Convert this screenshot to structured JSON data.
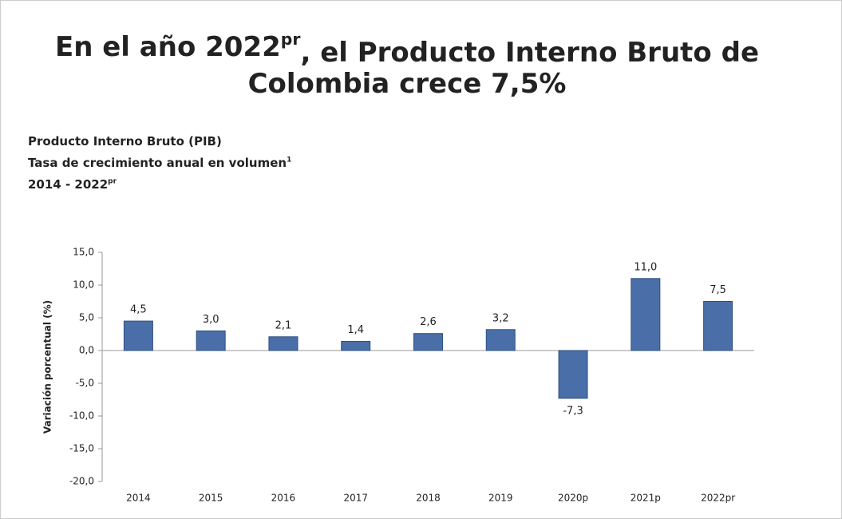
{
  "title_lines": [
    [
      "En el año 2022",
      "pr",
      ", el Producto Interno Bruto de"
    ],
    [
      "Colombia crece 7,5%"
    ]
  ],
  "subtitles": [
    [
      "Producto Interno Bruto (PIB)"
    ],
    [
      "Tasa de crecimiento anual en volumen",
      "1"
    ],
    [
      "2014 - 2022",
      "pr"
    ]
  ],
  "chart_data": {
    "type": "bar",
    "y_label": "Variación porcentual (%)",
    "categories": [
      "2014",
      "2015",
      "2016",
      "2017",
      "2018",
      "2019",
      "2020p",
      "2021p",
      "2022pr"
    ],
    "values": [
      4.5,
      3.0,
      2.1,
      1.4,
      2.6,
      3.2,
      -7.3,
      11.0,
      7.5
    ],
    "value_labels": [
      "4,5",
      "3,0",
      "2,1",
      "1,4",
      "2,6",
      "3,2",
      "-7,3",
      "11,0",
      "7,5"
    ],
    "color": "#4a6fa8",
    "ylim": [
      -20,
      15
    ],
    "yticks": [
      {
        "value": -20,
        "label": "-20,0"
      },
      {
        "value": -15,
        "label": "-15,0"
      },
      {
        "value": -10,
        "label": "-10,0"
      },
      {
        "value": -5,
        "label": "-5,0"
      },
      {
        "value": 0,
        "label": "0,0"
      },
      {
        "value": 5,
        "label": "5,0"
      },
      {
        "value": 10,
        "label": "10,0"
      },
      {
        "value": 15,
        "label": "15,0"
      }
    ],
    "grid": false
  }
}
